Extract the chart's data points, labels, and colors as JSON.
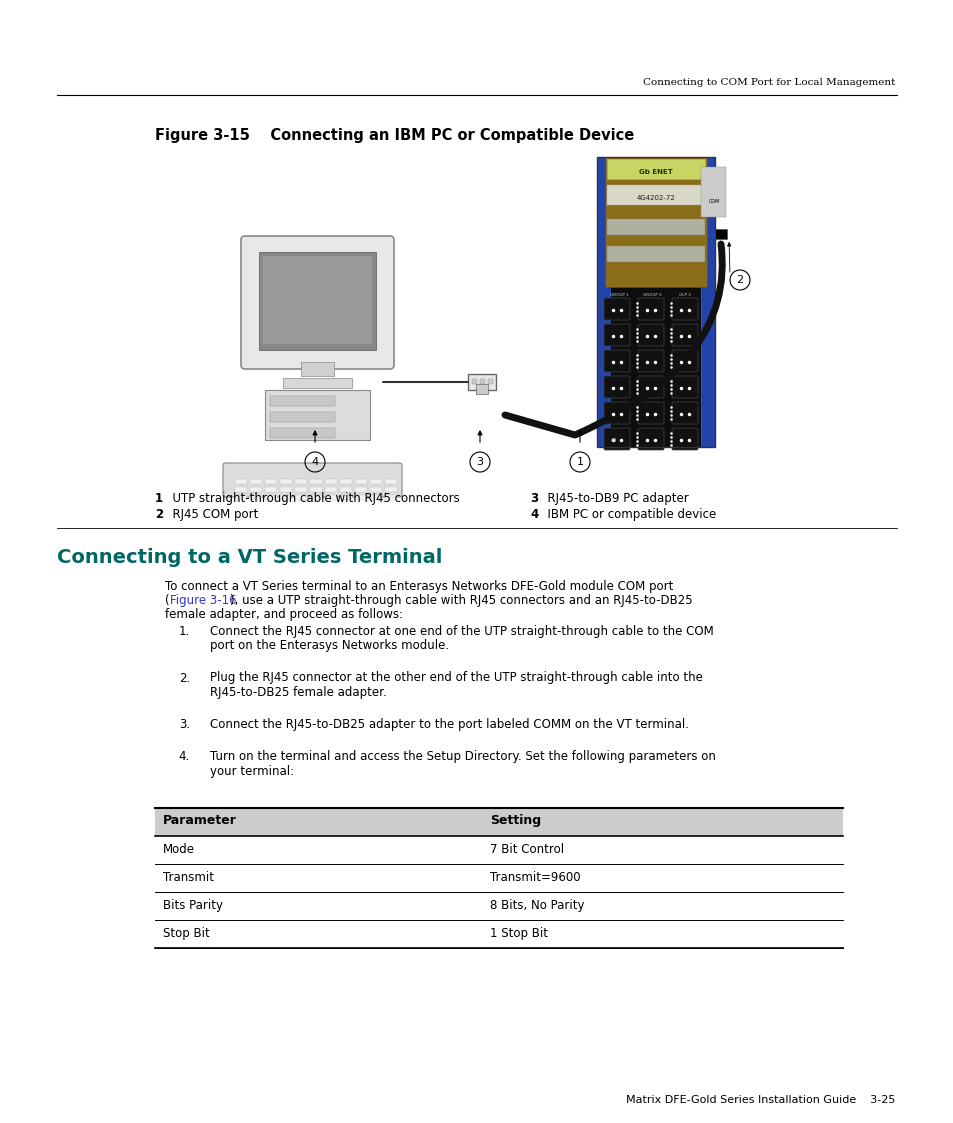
{
  "page_header_right": "Connecting to COM Port for Local Management",
  "figure_title": "Figure 3-15    Connecting an IBM PC or Compatible Device",
  "caption_items": [
    {
      "num": "1",
      "text": "  UTP straight-through cable with RJ45 connectors"
    },
    {
      "num": "2",
      "text": "  RJ45 COM port"
    },
    {
      "num": "3",
      "text": "  RJ45-to-DB9 PC adapter"
    },
    {
      "num": "4",
      "text": "  IBM PC or compatible device"
    }
  ],
  "section_title": "Connecting to a VT Series Terminal",
  "body_line1": "To connect a VT Series terminal to an Enterasys Networks DFE-Gold module COM port",
  "body_line2_pre": "(",
  "body_line2_link": "Figure 3-16",
  "body_line2_post": "), use a UTP straight-through cable with RJ45 connectors and an RJ45-to-DB25",
  "body_line3": "female adapter, and proceed as follows:",
  "list_items": [
    [
      "Connect the RJ45 connector at one end of the UTP straight-through cable to the COM",
      "port on the Enterasys Networks module."
    ],
    [
      "Plug the RJ45 connector at the other end of the UTP straight-through cable into the",
      "RJ45-to-DB25 female adapter."
    ],
    [
      "Connect the RJ45-to-DB25 adapter to the port labeled COMM on the VT terminal."
    ],
    [
      "Turn on the terminal and access the Setup Directory. Set the following parameters on",
      "your terminal:"
    ]
  ],
  "table_header": [
    "Parameter",
    "Setting"
  ],
  "table_rows": [
    [
      "Mode",
      "7 Bit Control"
    ],
    [
      "Transmit",
      "Transmit=9600"
    ],
    [
      "Bits Parity",
      "8 Bits, No Parity"
    ],
    [
      "Stop Bit",
      "1 Stop Bit"
    ]
  ],
  "footer_text": "Matrix DFE-Gold Series Installation Guide    3-25",
  "section_title_color": "#006666",
  "link_color": "#3333cc",
  "table_header_bg": "#cccccc",
  "bg_color": "#ffffff",
  "sw_blue": "#2244aa",
  "sw_black": "#111111",
  "sw_brown": "#8B6914",
  "sw_green_label": "#c8d464",
  "sw_gray_label": "#d0d0d0"
}
